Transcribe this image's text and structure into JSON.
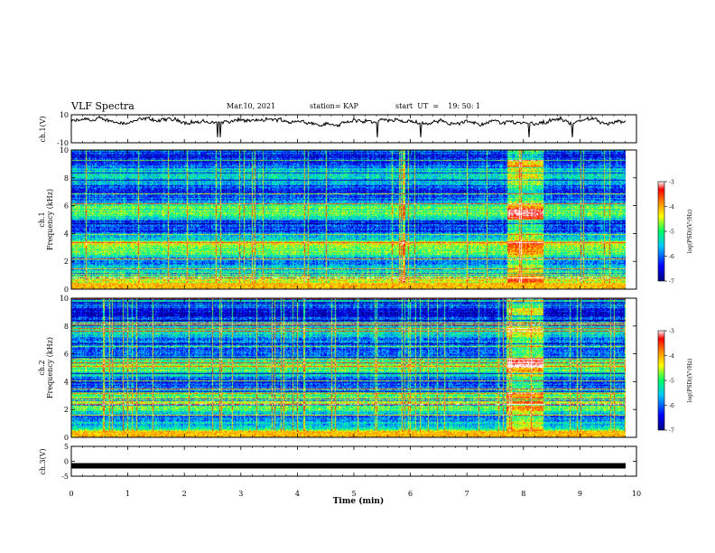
{
  "header": {
    "title": "VLF Spectra",
    "date": "Mar.10, 2021",
    "station": "station= KAP",
    "start": "start  UT  =    19: 50: 1"
  },
  "chart_data": [
    {
      "type": "line",
      "panel": "ch1-waveform",
      "ylabel": "ch.1(V)",
      "ylim": [
        -10,
        10
      ],
      "yticks": [
        "10",
        "-10"
      ],
      "xlim": [
        0,
        10
      ],
      "note_values": "approximate mean level near +5 V with noise"
    },
    {
      "type": "heatmap",
      "panel": "ch1-spectrogram",
      "ylabel": "ch.1\nFrequency (kHz)",
      "ylim": [
        0,
        10
      ],
      "yticks": [
        "0",
        "2",
        "4",
        "6",
        "8",
        "10"
      ],
      "xlim": [
        0,
        10
      ],
      "colorbar": {
        "label": "log(PSD)(V²/Hz)",
        "ticks": [
          "-3",
          "-4",
          "-5",
          "-6",
          "-7"
        ],
        "range": [
          -7,
          -3
        ]
      },
      "strong_band_time_min": [
        7.7,
        8.35
      ]
    },
    {
      "type": "heatmap",
      "panel": "ch2-spectrogram",
      "ylabel": "ch.2\nFrequency (kHz)",
      "ylim": [
        0,
        10
      ],
      "yticks": [
        "0",
        "2",
        "4",
        "6",
        "8",
        "10"
      ],
      "xlim": [
        0,
        10
      ],
      "colorbar": {
        "label": "log(PSD)(V²/Hz)",
        "ticks": [
          "-3",
          "-4",
          "-5",
          "-6",
          "-7"
        ],
        "range": [
          -7,
          -3
        ]
      },
      "strong_band_time_min": [
        7.7,
        8.35
      ]
    },
    {
      "type": "line",
      "panel": "ch3-waveform",
      "ylabel": "ch.3(V)",
      "ylim": [
        -5,
        5
      ],
      "yticks": [
        "5",
        "0",
        "-5"
      ],
      "xlim": [
        0,
        10
      ],
      "values_constant": -1.5
    }
  ],
  "xaxis": {
    "label": "Time  (min)",
    "ticks": [
      "0",
      "1",
      "2",
      "3",
      "4",
      "5",
      "6",
      "7",
      "8",
      "9",
      "10"
    ]
  },
  "colors": {
    "trace": "#000000",
    "cmap": [
      "#000080",
      "#0000ff",
      "#00bfff",
      "#00ff80",
      "#ffff00",
      "#ff8000",
      "#ff0000",
      "#ffffff"
    ]
  }
}
